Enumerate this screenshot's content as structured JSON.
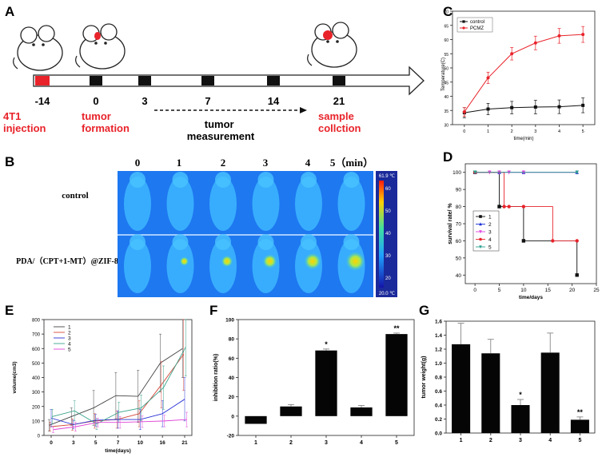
{
  "panels": {
    "A": {
      "letter": "A",
      "timeline_ticks": [
        {
          "day": "-14",
          "event": "4T1\ninjection"
        },
        {
          "day": "0",
          "event": "tumor\nformation"
        },
        {
          "day": "3",
          "event": ""
        },
        {
          "day": "7",
          "event": ""
        },
        {
          "day": "14",
          "event": ""
        },
        {
          "day": "21",
          "event": "sample\ncollction"
        }
      ],
      "measurement_label": "tumor\nmeasurement",
      "colors": {
        "event_text": "#e8232a",
        "first_box": "#e8232a",
        "box": "#111111"
      }
    },
    "B": {
      "letter": "B",
      "time_labels": [
        "0",
        "1",
        "2",
        "3",
        "4",
        "5（min）"
      ],
      "row_labels": [
        "control",
        "PDA/（CPT+1-MT）@ZIF-8"
      ],
      "colorbar_top": "61.9 ℃",
      "colorbar_bottom": "20.0 ℃",
      "colorbar_ticks": [
        "60",
        "50",
        "40",
        "30",
        "20"
      ]
    },
    "C": {
      "letter": "C"
    },
    "D": {
      "letter": "D"
    },
    "E": {
      "letter": "E"
    },
    "F": {
      "letter": "F"
    },
    "G": {
      "letter": "G"
    }
  },
  "chart_data": [
    {
      "id": "C",
      "type": "line",
      "x": [
        0,
        1,
        2,
        3,
        4,
        5
      ],
      "series": [
        {
          "name": "control",
          "color": "#111111",
          "values": [
            34.2,
            35.5,
            36.0,
            36.2,
            36.3,
            36.8
          ],
          "errors": [
            1.8,
            2.0,
            2.2,
            2.4,
            2.4,
            2.6
          ]
        },
        {
          "name": "PCMZ",
          "color": "#e8232a",
          "values": [
            34.5,
            46.5,
            55.0,
            58.8,
            61.3,
            61.8
          ],
          "errors": [
            1.5,
            2.0,
            2.2,
            2.4,
            2.6,
            2.8
          ]
        }
      ],
      "xlabel": "time(min)",
      "ylabel": "Temperature(C)",
      "xlim": [
        -0.5,
        5.5
      ],
      "ylim": [
        30,
        70
      ],
      "xticks": [
        "0",
        "1",
        "2",
        "3",
        "4",
        "5"
      ],
      "yticks": [
        "30",
        "35",
        "40",
        "45",
        "50",
        "55",
        "60",
        "65",
        "70"
      ],
      "legend": "top-left"
    },
    {
      "id": "D",
      "type": "line",
      "step": true,
      "series": [
        {
          "name": "1",
          "color": "#111111",
          "marker": "square",
          "x": [
            0,
            5,
            10,
            21
          ],
          "values": [
            100,
            80,
            60,
            40
          ]
        },
        {
          "name": "2",
          "color": "#1a2fd6",
          "marker": "triangle",
          "x": [
            0,
            5,
            10,
            21
          ],
          "values": [
            100,
            100,
            100,
            100
          ]
        },
        {
          "name": "3",
          "color": "#e043e0",
          "marker": "triangle-down",
          "x": [
            0,
            3,
            5,
            7,
            10,
            21
          ],
          "values": [
            100,
            100,
            100,
            100,
            100,
            100
          ]
        },
        {
          "name": "4",
          "color": "#e8232a",
          "marker": "circle",
          "x": [
            0,
            6,
            7,
            10,
            16,
            21
          ],
          "values": [
            100,
            80,
            80,
            80,
            60,
            60
          ]
        },
        {
          "name": "5",
          "color": "#2ca18f",
          "marker": "triangle-down",
          "x": [
            0,
            21
          ],
          "values": [
            100,
            100
          ]
        }
      ],
      "xlabel": "time/days",
      "ylabel": "survival rate/ %",
      "xlim": [
        -2,
        25
      ],
      "ylim": [
        35,
        105
      ],
      "xticks": [
        "0",
        "5",
        "10",
        "15",
        "20",
        "25"
      ],
      "yticks": [
        "40",
        "50",
        "60",
        "70",
        "80",
        "90",
        "100"
      ],
      "legend": "middle-left"
    },
    {
      "id": "E",
      "type": "line",
      "categories": [
        "0",
        "3",
        "5",
        "7",
        "10",
        "16",
        "21"
      ],
      "series": [
        {
          "name": "1",
          "color": "#444444",
          "values": [
            70,
            130,
            190,
            275,
            270,
            500,
            600
          ],
          "errors": [
            40,
            60,
            120,
            160,
            180,
            200,
            200
          ]
        },
        {
          "name": "2",
          "color": "#d4493c",
          "values": [
            60,
            75,
            100,
            110,
            150,
            350,
            560
          ],
          "errors": [
            30,
            40,
            50,
            60,
            90,
            160,
            250
          ]
        },
        {
          "name": "3",
          "color": "#2b33d6",
          "values": [
            120,
            75,
            105,
            110,
            110,
            150,
            250
          ],
          "errors": [
            60,
            30,
            40,
            60,
            70,
            90,
            150
          ]
        },
        {
          "name": "4",
          "color": "#3aa38a",
          "values": [
            130,
            170,
            80,
            160,
            190,
            330,
            610
          ],
          "errors": [
            50,
            70,
            40,
            70,
            90,
            150,
            200
          ]
        },
        {
          "name": "5",
          "color": "#e044d8",
          "values": [
            40,
            60,
            90,
            90,
            95,
            100,
            110
          ],
          "errors": [
            20,
            30,
            30,
            40,
            40,
            40,
            50
          ]
        }
      ],
      "xlabel": "time(days)",
      "ylabel": "volume(cm3)",
      "ylim": [
        0,
        800
      ],
      "yticks": [
        "0",
        "100",
        "200",
        "300",
        "400",
        "500",
        "600",
        "700",
        "800"
      ],
      "legend": "top-left"
    },
    {
      "id": "F",
      "type": "bar",
      "categories": [
        "1",
        "2",
        "3",
        "4",
        "5"
      ],
      "values": [
        -8,
        10,
        68,
        9,
        85
      ],
      "errors": [
        0,
        2,
        1.5,
        2,
        1
      ],
      "annotations": [
        "",
        "",
        "*",
        "",
        "**"
      ],
      "ylabel": "inhibition ratio(%)",
      "ylim": [
        -20,
        100
      ],
      "yticks": [
        "-20",
        "0",
        "20",
        "40",
        "60",
        "80",
        "100"
      ]
    },
    {
      "id": "G",
      "type": "bar",
      "categories": [
        "1",
        "2",
        "3",
        "4",
        "5"
      ],
      "values": [
        1.27,
        1.14,
        0.4,
        1.15,
        0.19
      ],
      "errors": [
        0.3,
        0.2,
        0.08,
        0.28,
        0.04
      ],
      "annotations": [
        "",
        "",
        "*",
        "",
        "**"
      ],
      "ylabel": "tumor weight(g)",
      "ylim": [
        0,
        1.6
      ],
      "yticks": [
        "0.0",
        "0.2",
        "0.4",
        "0.6",
        "0.8",
        "1.0",
        "1.2",
        "1.4",
        "1.6"
      ]
    }
  ]
}
